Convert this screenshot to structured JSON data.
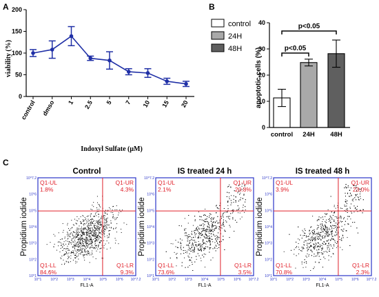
{
  "panel_labels": {
    "a": "A",
    "b": "B",
    "c": "C"
  },
  "chart_data": [
    {
      "type": "line",
      "panel": "A",
      "xlabel": "Indoxyl Sulfate (μM)",
      "ylabel": "viability (%)",
      "categories": [
        "control",
        "dmso",
        "1",
        "2.5",
        "5",
        "7",
        "10",
        "15",
        "20"
      ],
      "yticks": [
        "0",
        "50",
        "100",
        "150",
        "200"
      ],
      "ylim": [
        0,
        200
      ],
      "series": [
        {
          "values": [
            100,
            108,
            139,
            88,
            83,
            57,
            54,
            35,
            29
          ],
          "errors": [
            8,
            20,
            22,
            5,
            20,
            7,
            10,
            7,
            6
          ]
        }
      ],
      "color": "#1f2fa6",
      "grid": false
    },
    {
      "type": "bar",
      "panel": "B",
      "ylabel": "apoptotic cells (%)",
      "categories": [
        "control",
        "24H",
        "48H"
      ],
      "yticks": [
        "0",
        "10",
        "20",
        "30",
        "40"
      ],
      "ylim": [
        0,
        40
      ],
      "values": [
        11.3,
        24.8,
        28.2
      ],
      "errors": [
        3.3,
        1.3,
        5.2
      ],
      "colors": [
        "#ffffff",
        "#a9a9a9",
        "#5f5f5f"
      ],
      "legend": [
        "control",
        "24H",
        "48H"
      ],
      "legend_position": "left",
      "annotations": [
        "p<0.05",
        "p<0.05"
      ]
    },
    {
      "type": "scatter",
      "panel": "C",
      "plots": [
        {
          "title": "Control",
          "ylabel": "Propidium iodide",
          "xlabel": "FL1-A",
          "quadrants": {
            "ul_label": "Q1-UL",
            "ul": "1.8%",
            "ur_label": "Q1-UR",
            "ur": "4.3%",
            "ll_label": "Q1-LL",
            "ll": "84.6%",
            "lr_label": "Q1-LR",
            "lr": "9.3%"
          }
        },
        {
          "title": "IS treated 24 h",
          "ylabel": "Propidium iodide",
          "xlabel": "FL1-A",
          "quadrants": {
            "ul_label": "Q1-UL",
            "ul": "2.1%",
            "ur_label": "Q1-UR",
            "ur": "20.8%",
            "ll_label": "Q1-LL",
            "ll": "73.6%",
            "lr_label": "Q1-LR",
            "lr": "3.5%"
          }
        },
        {
          "title": "IS treated 48 h",
          "ylabel": "Propidium iodide",
          "xlabel": "FL1-A",
          "quadrants": {
            "ul_label": "Q1-UL",
            "ul": "3.9%",
            "ur_label": "Q1-UR",
            "ur": "23.0%",
            "ll_label": "Q1-LL",
            "ll": "70.8%",
            "lr_label": "Q1-LR",
            "lr": "2.3%"
          }
        }
      ],
      "axis_ticks": [
        "10^1",
        "10^2",
        "10^3",
        "10^4",
        "10^5",
        "10^6",
        "10^7.2"
      ],
      "axis_range": [
        1,
        7.2
      ],
      "quadrant_gate": [
        5.1,
        5.1
      ],
      "gate_color": "#e0202a",
      "axis_color": "#2a34c8"
    }
  ]
}
